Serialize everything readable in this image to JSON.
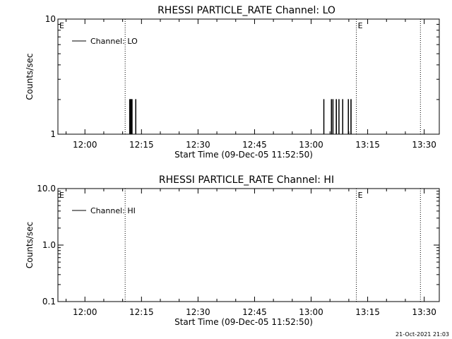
{
  "chart_data": [
    {
      "type": "line",
      "title": "RHESSI PARTICLE_RATE Channel: LO",
      "xlabel": "Start Time (09-Dec-05 11:52:50)",
      "ylabel": "Counts/sec",
      "yscale": "log",
      "ylim": [
        1,
        10
      ],
      "yticks": [
        1,
        10
      ],
      "ytick_labels": [
        "1",
        "10"
      ],
      "xlim": [
        "11:52:50",
        "13:34:00"
      ],
      "xticks": [
        "12:00",
        "12:15",
        "12:30",
        "12:45",
        "13:00",
        "13:15",
        "13:30"
      ],
      "legend_position": "top-left",
      "series": [
        {
          "name": "Channel: LO",
          "color": "#000000",
          "points": [
            [
              "11:52:50",
              1
            ],
            [
              "12:11:50",
              1
            ],
            [
              "12:11:50",
              2
            ],
            [
              "12:11:56",
              2
            ],
            [
              "12:11:56",
              1
            ],
            [
              "12:12:08",
              1
            ],
            [
              "12:12:08",
              2
            ],
            [
              "12:12:14",
              2
            ],
            [
              "12:12:14",
              1
            ],
            [
              "12:12:26",
              1
            ],
            [
              "12:12:26",
              2
            ],
            [
              "12:12:32",
              2
            ],
            [
              "12:12:32",
              1
            ],
            [
              "12:13:26",
              1
            ],
            [
              "12:13:26",
              2
            ],
            [
              "12:13:32",
              2
            ],
            [
              "12:13:32",
              1
            ],
            [
              "13:03:20",
              1
            ],
            [
              "13:03:20",
              2
            ],
            [
              "13:03:26",
              2
            ],
            [
              "13:03:26",
              1
            ],
            [
              "13:05:20",
              1
            ],
            [
              "13:05:20",
              2
            ],
            [
              "13:05:26",
              2
            ],
            [
              "13:05:26",
              1
            ],
            [
              "13:05:44",
              1
            ],
            [
              "13:05:44",
              2
            ],
            [
              "13:05:50",
              2
            ],
            [
              "13:05:50",
              1
            ],
            [
              "13:06:38",
              1
            ],
            [
              "13:06:38",
              2
            ],
            [
              "13:06:44",
              2
            ],
            [
              "13:06:44",
              1
            ],
            [
              "13:07:20",
              1
            ],
            [
              "13:07:20",
              2
            ],
            [
              "13:07:26",
              2
            ],
            [
              "13:07:26",
              1
            ],
            [
              "13:08:20",
              1
            ],
            [
              "13:08:20",
              2
            ],
            [
              "13:08:26",
              2
            ],
            [
              "13:08:26",
              1
            ],
            [
              "13:09:50",
              1
            ],
            [
              "13:09:50",
              2
            ],
            [
              "13:09:56",
              2
            ],
            [
              "13:09:56",
              1
            ],
            [
              "13:10:32",
              1
            ],
            [
              "13:10:32",
              2
            ],
            [
              "13:10:38",
              2
            ],
            [
              "13:10:38",
              1
            ],
            [
              "13:12:10",
              1
            ]
          ]
        }
      ],
      "markers": [
        {
          "time": "12:10:40",
          "label": ""
        },
        {
          "time": "13:12:00",
          "label": "E"
        },
        {
          "time": "13:29:00",
          "label": ""
        },
        {
          "time": "11:52:50",
          "label": "E"
        }
      ]
    },
    {
      "type": "line",
      "title": "RHESSI PARTICLE_RATE Channel: HI",
      "xlabel": "Start Time (09-Dec-05 11:52:50)",
      "ylabel": "Counts/sec",
      "yscale": "log",
      "ylim": [
        0.1,
        10
      ],
      "yticks": [
        0.1,
        1,
        10
      ],
      "ytick_labels": [
        "0.1",
        "1.0",
        "10.0"
      ],
      "xlim": [
        "11:52:50",
        "13:34:00"
      ],
      "xticks": [
        "12:00",
        "12:15",
        "12:30",
        "12:45",
        "13:00",
        "13:15",
        "13:30"
      ],
      "legend_position": "top-left",
      "series": [
        {
          "name": "Channel: HI",
          "color": "#000000",
          "points": []
        }
      ],
      "markers": [
        {
          "time": "12:10:40",
          "label": ""
        },
        {
          "time": "13:12:00",
          "label": "E"
        },
        {
          "time": "13:29:00",
          "label": ""
        },
        {
          "time": "11:52:50",
          "label": "E"
        }
      ]
    }
  ],
  "footer": {
    "timestamp": "21-Oct-2021 21:03"
  }
}
